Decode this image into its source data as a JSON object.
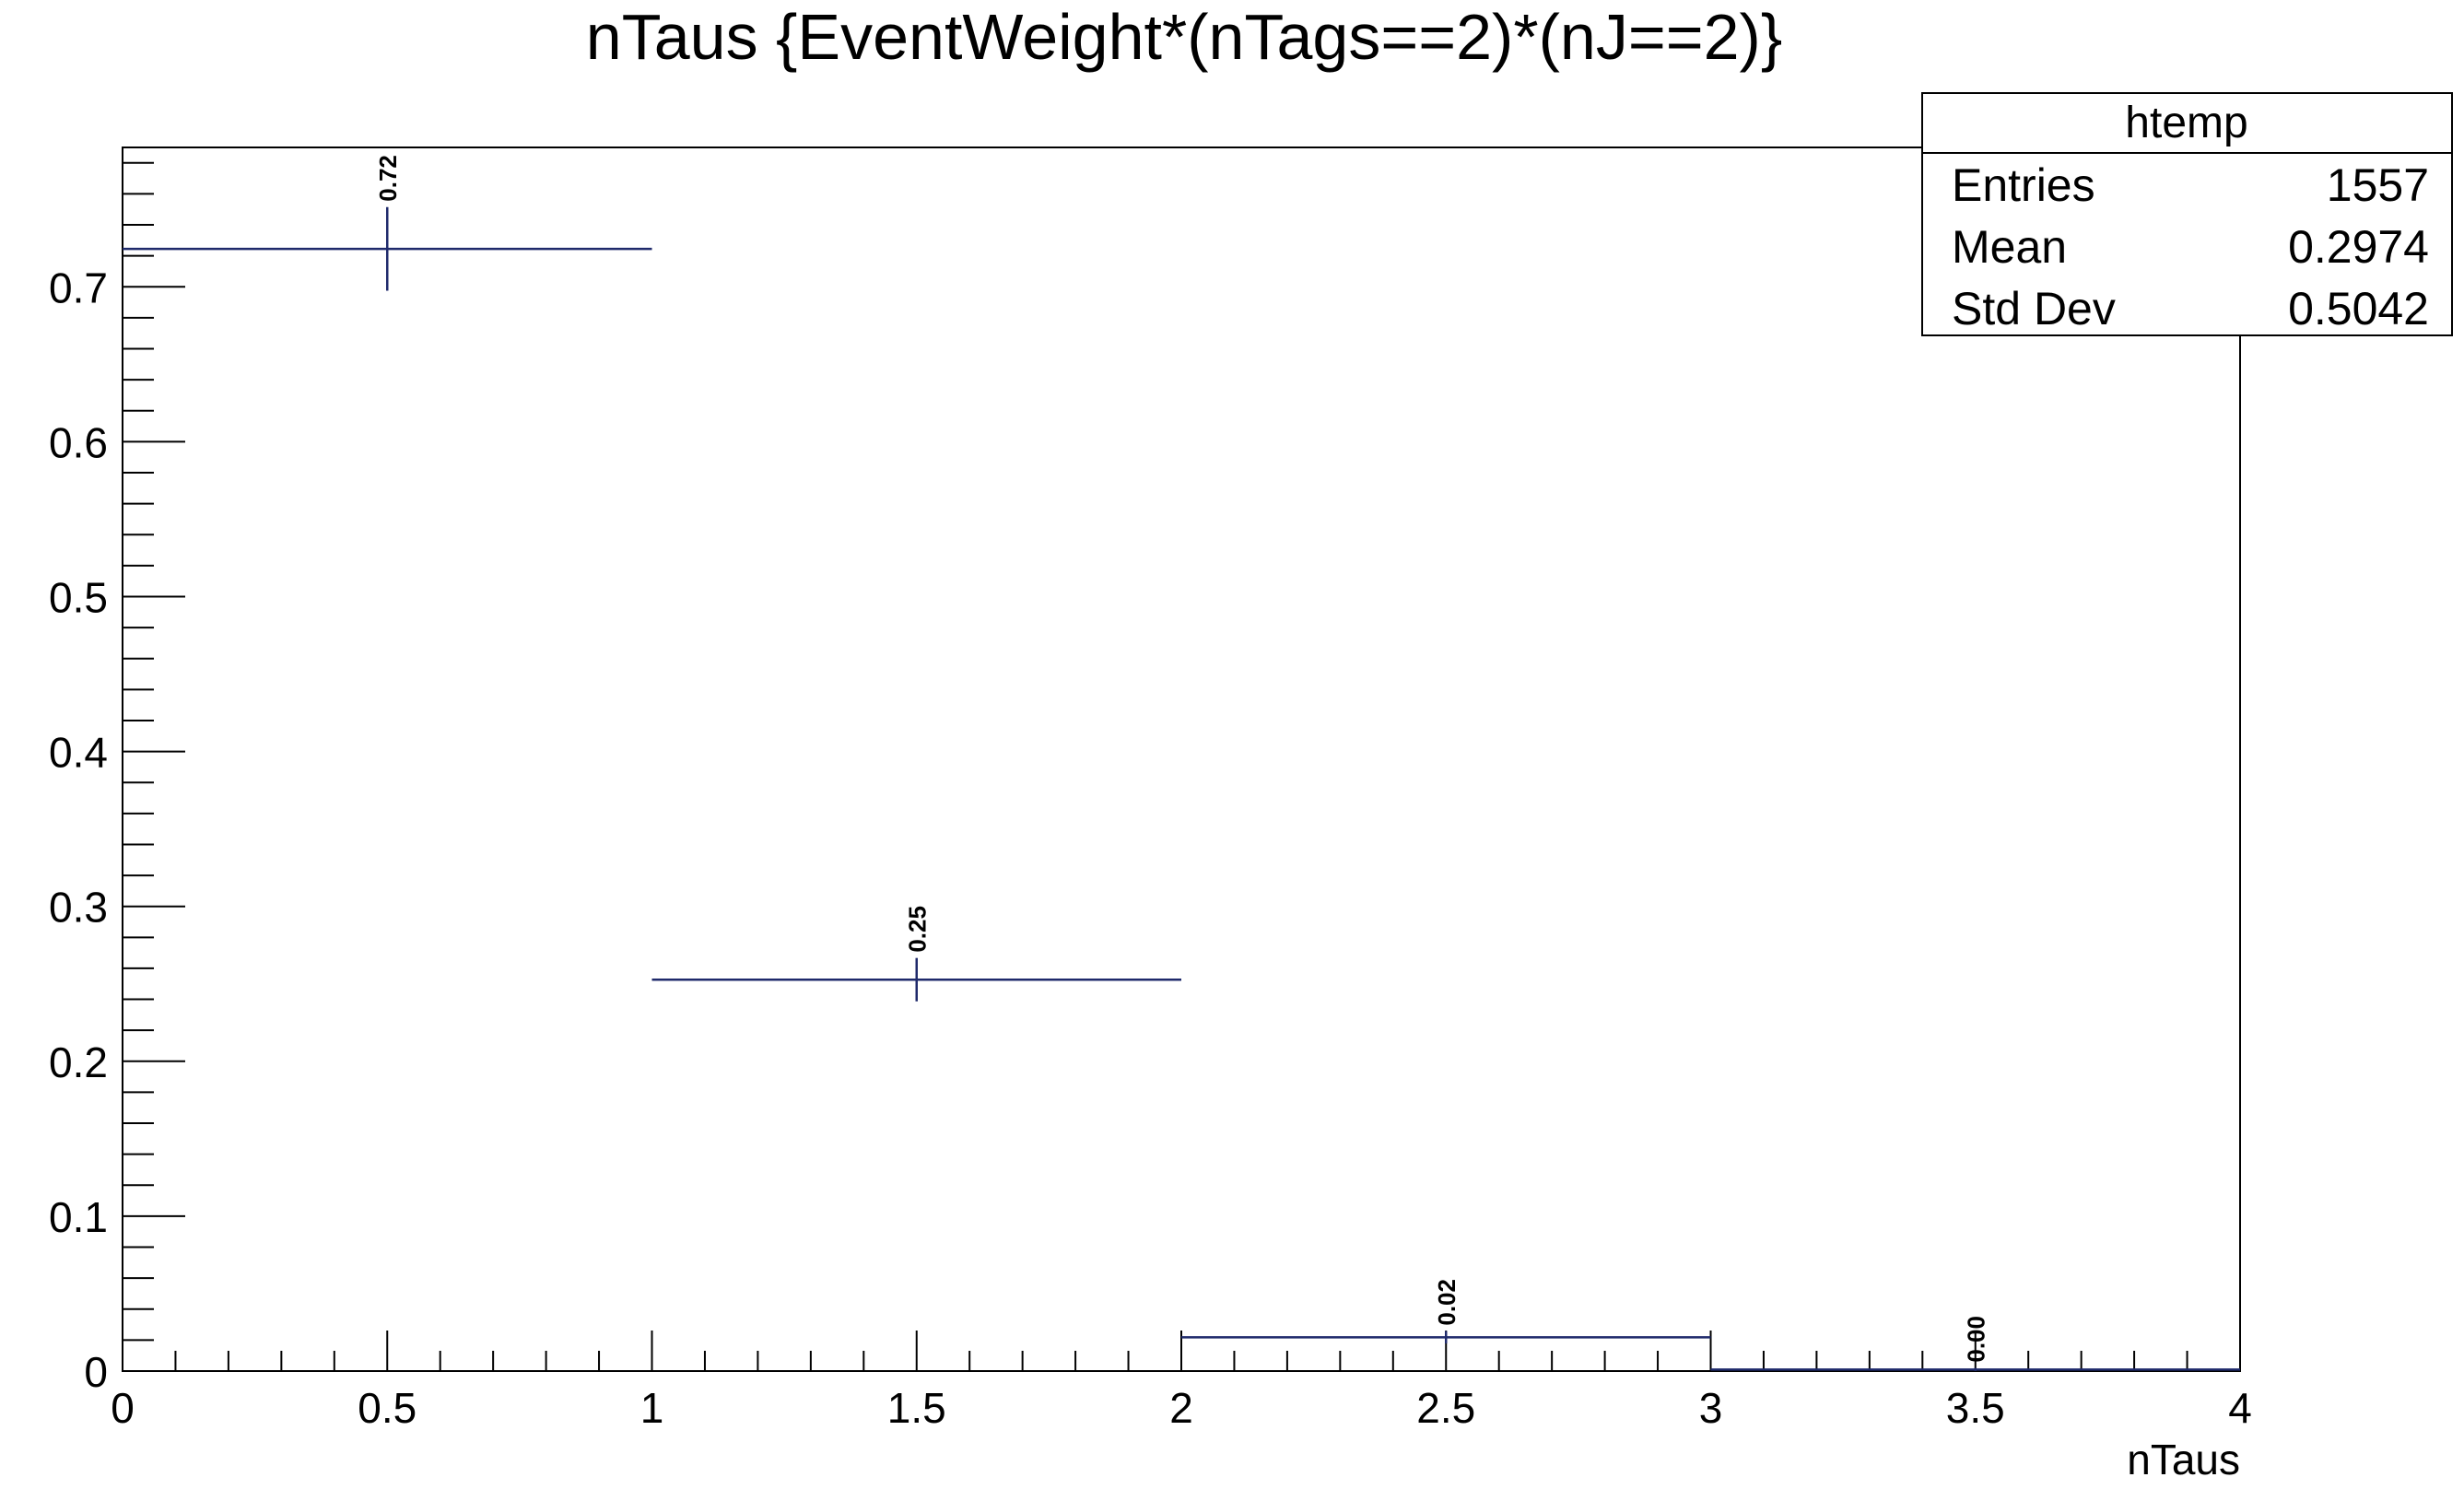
{
  "chart_data": {
    "type": "histogram",
    "title": "nTaus {EventWeight*(nTags==2)*(nJ==2)}",
    "xlabel": "nTaus",
    "ylabel": "",
    "xlim": [
      0,
      4
    ],
    "ylim": [
      0,
      0.79
    ],
    "bins": [
      {
        "low": 0,
        "high": 1,
        "center": 0.5,
        "value": 0.7245,
        "error": 0.027,
        "label": "0.72"
      },
      {
        "low": 1,
        "high": 2,
        "center": 1.5,
        "value": 0.2527,
        "error": 0.014,
        "label": "0.25"
      },
      {
        "low": 2,
        "high": 3,
        "center": 2.5,
        "value": 0.0218,
        "error": 0.004,
        "label": "0.02"
      },
      {
        "low": 3,
        "high": 4,
        "center": 3.5,
        "value": 0.001,
        "error": 0.001,
        "label": "0.00"
      }
    ],
    "x_ticks": [
      {
        "value": 0,
        "label": "0"
      },
      {
        "value": 0.5,
        "label": "0.5"
      },
      {
        "value": 1,
        "label": "1"
      },
      {
        "value": 1.5,
        "label": "1.5"
      },
      {
        "value": 2,
        "label": "2"
      },
      {
        "value": 2.5,
        "label": "2.5"
      },
      {
        "value": 3,
        "label": "3"
      },
      {
        "value": 3.5,
        "label": "3.5"
      },
      {
        "value": 4,
        "label": "4"
      }
    ],
    "y_ticks": [
      {
        "value": 0,
        "label": "0"
      },
      {
        "value": 0.1,
        "label": "0.1"
      },
      {
        "value": 0.2,
        "label": "0.2"
      },
      {
        "value": 0.3,
        "label": "0.3"
      },
      {
        "value": 0.4,
        "label": "0.4"
      },
      {
        "value": 0.5,
        "label": "0.5"
      },
      {
        "value": 0.6,
        "label": "0.6"
      },
      {
        "value": 0.7,
        "label": "0.7"
      }
    ],
    "line_color": "#1f2a6b",
    "grid": false
  },
  "stats_box": {
    "title": "htemp",
    "placement": "top-right",
    "rows": [
      {
        "label": "Entries",
        "value": "1557"
      },
      {
        "label": "Mean",
        "value": "0.2974"
      },
      {
        "label": "Std Dev",
        "value": "0.5042"
      }
    ]
  }
}
